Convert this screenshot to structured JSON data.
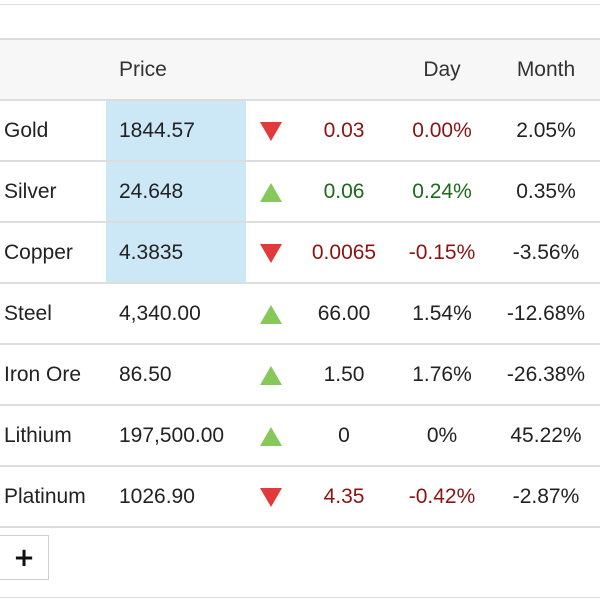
{
  "header": {
    "name": "",
    "price": "Price",
    "change": "",
    "day": "Day",
    "month": "Month"
  },
  "rows": [
    {
      "name": "Gold",
      "price": "1844.57",
      "direction": "down",
      "change": "0.03",
      "day": "0.00%",
      "month": "2.05%",
      "tone": "red",
      "highlight": true
    },
    {
      "name": "Silver",
      "price": "24.648",
      "direction": "up",
      "change": "0.06",
      "day": "0.24%",
      "month": "0.35%",
      "tone": "green",
      "highlight": true
    },
    {
      "name": "Copper",
      "price": "4.3835",
      "direction": "down",
      "change": "0.0065",
      "day": "-0.15%",
      "month": "-3.56%",
      "tone": "red",
      "highlight": true
    },
    {
      "name": "Steel",
      "price": "4,340.00",
      "direction": "up",
      "change": "66.00",
      "day": "1.54%",
      "month": "-12.68%",
      "tone": "neutral",
      "highlight": false
    },
    {
      "name": "Iron Ore",
      "price": "86.50",
      "direction": "up",
      "change": "1.50",
      "day": "1.76%",
      "month": "-26.38%",
      "tone": "neutral",
      "highlight": false
    },
    {
      "name": "Lithium",
      "price": "197,500.00",
      "direction": "up",
      "change": "0",
      "day": "0%",
      "month": "45.22%",
      "tone": "neutral",
      "highlight": false
    },
    {
      "name": "Platinum",
      "price": "1026.90",
      "direction": "down",
      "change": "4.35",
      "day": "-0.42%",
      "month": "-2.87%",
      "tone": "red",
      "highlight": false
    }
  ],
  "add_button": {
    "label": "+"
  },
  "colors": {
    "highlight": "#cce8f6",
    "up_arrow": "#86c95a",
    "down_arrow": "#e23a3a",
    "negative_text": "#8a1313",
    "positive_text": "#1a6b1a"
  },
  "icons": {
    "up": "triangle-up-icon",
    "down": "triangle-down-icon"
  }
}
